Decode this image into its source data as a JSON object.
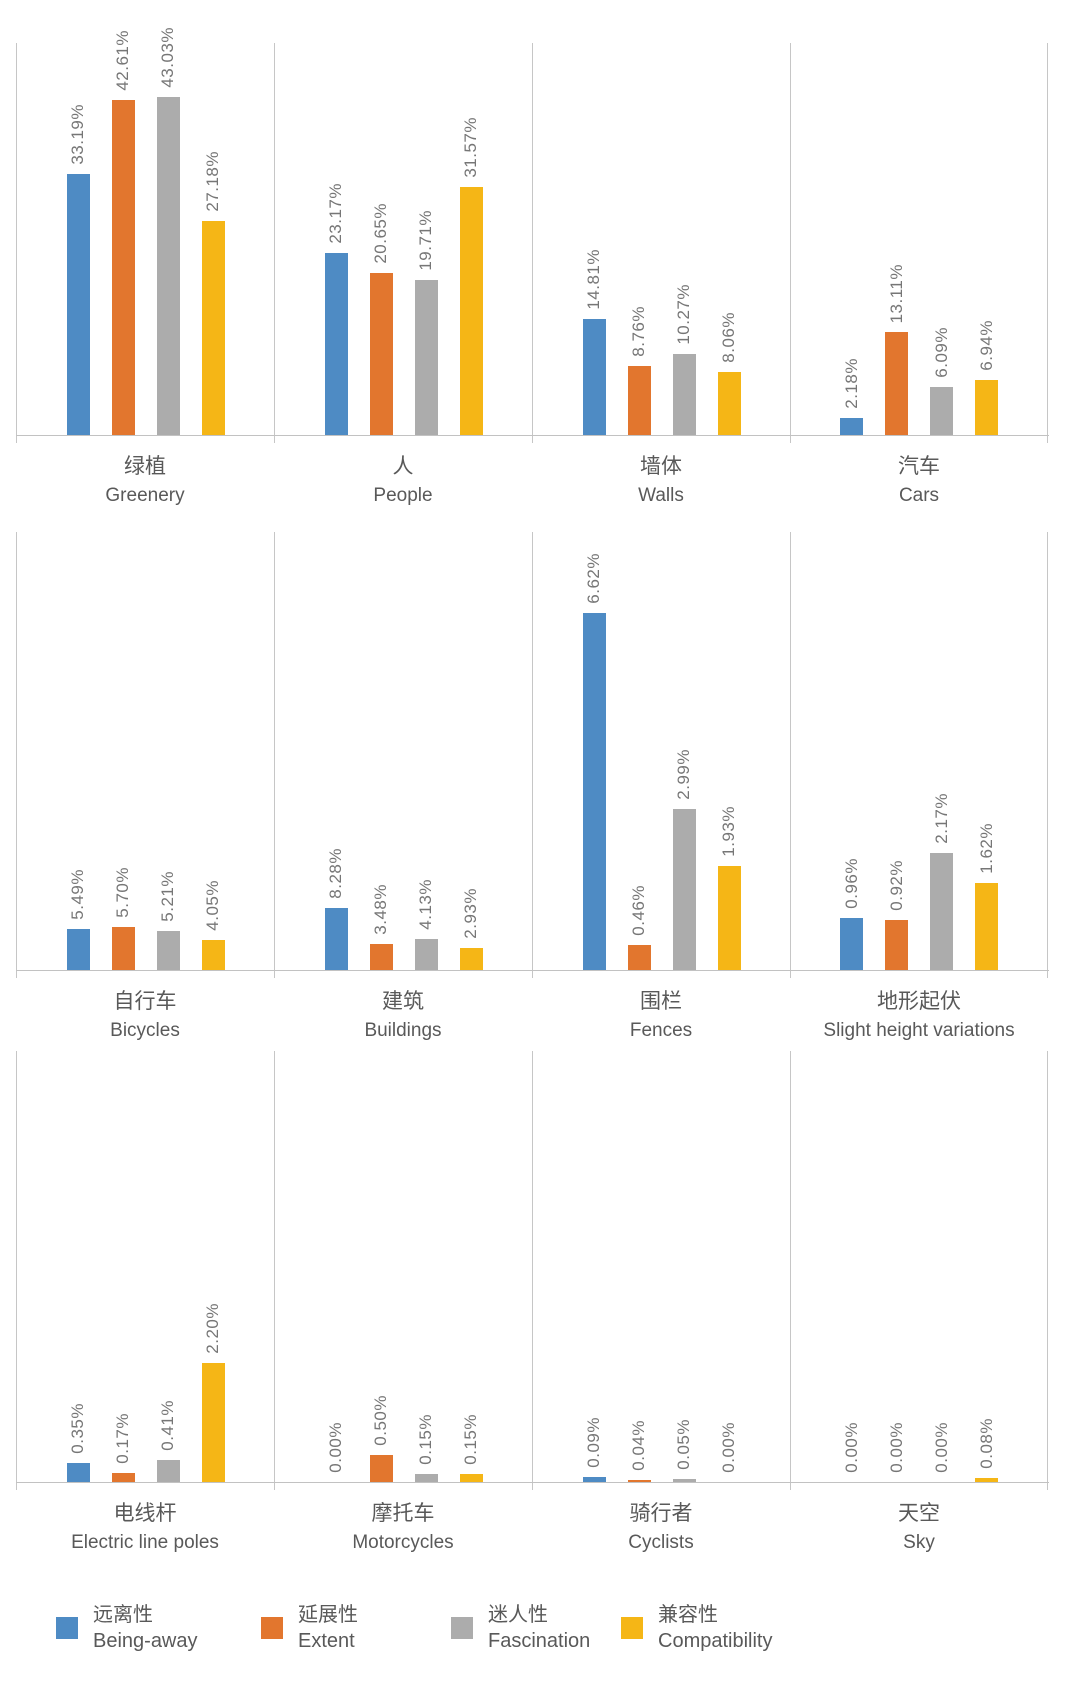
{
  "series": [
    {
      "id": "being-away",
      "zh": "远离性",
      "en": "Being-away",
      "color": "#4e8bc4"
    },
    {
      "id": "extent",
      "zh": "延展性",
      "en": "Extent",
      "color": "#e2762e"
    },
    {
      "id": "fascination",
      "zh": "迷人性",
      "en": "Fascination",
      "color": "#acacac"
    },
    {
      "id": "compatibility",
      "zh": "兼容性",
      "en": "Compatibility",
      "color": "#f5b616"
    }
  ],
  "chart_data": {
    "type": "bar",
    "unit": "%",
    "legend_position": "bottom",
    "grid": false,
    "series_names": [
      "远离性 Being-away",
      "延展性 Extent",
      "迷人性 Fascination",
      "兼容性 Compatibility"
    ],
    "layout_hint": {
      "rows": 3,
      "panels_per_row": 4,
      "value_labels_rotated": true,
      "per_panel_ylim": [
        [
          0,
          50
        ],
        [
          0,
          50
        ],
        [
          0,
          50
        ],
        [
          0,
          50
        ],
        [
          0,
          58
        ],
        [
          0,
          58
        ],
        [
          0,
          8
        ],
        [
          0,
          8
        ],
        [
          0,
          8
        ],
        [
          0,
          8
        ],
        [
          0,
          8
        ],
        [
          0,
          8
        ]
      ]
    },
    "groups": [
      {
        "zh": "绿植",
        "en": "Greenery",
        "values": [
          33.19,
          42.61,
          43.03,
          27.18
        ],
        "labels": [
          "33.19%",
          "42.61%",
          "43.03%",
          "27.18%"
        ]
      },
      {
        "zh": "人",
        "en": "People",
        "values": [
          23.17,
          20.65,
          19.71,
          31.57
        ],
        "labels": [
          "23.17%",
          "20.65%",
          "19.71%",
          "31.57%"
        ]
      },
      {
        "zh": "墙体",
        "en": "Walls",
        "values": [
          14.81,
          8.76,
          10.27,
          8.06
        ],
        "labels": [
          "14.81%",
          "8.76%",
          "10.27%",
          "8.06%"
        ]
      },
      {
        "zh": "汽车",
        "en": "Cars",
        "values": [
          2.18,
          13.11,
          6.09,
          6.94
        ],
        "labels": [
          "2.18%",
          "13.11%",
          "6.09%",
          "6.94%"
        ]
      },
      {
        "zh": "自行车",
        "en": "Bicycles",
        "values": [
          5.49,
          5.7,
          5.21,
          4.05
        ],
        "labels": [
          "5.49%",
          "5.70%",
          "5.21%",
          "4.05%"
        ]
      },
      {
        "zh": "建筑",
        "en": "Buildings",
        "values": [
          8.28,
          3.48,
          4.13,
          2.93
        ],
        "labels": [
          "8.28%",
          "3.48%",
          "4.13%",
          "2.93%"
        ]
      },
      {
        "zh": "围栏",
        "en": "Fences",
        "values": [
          6.62,
          0.46,
          2.99,
          1.93
        ],
        "labels": [
          "6.62%",
          "0.46%",
          "2.99%",
          "1.93%"
        ]
      },
      {
        "zh": "地形起伏",
        "en": "Slight height variations",
        "values": [
          0.96,
          0.92,
          2.17,
          1.62
        ],
        "labels": [
          "0.96%",
          "0.92%",
          "2.17%",
          "1.62%"
        ]
      },
      {
        "zh": "电线杆",
        "en": "Electric line poles",
        "values": [
          0.35,
          0.17,
          0.41,
          2.2
        ],
        "labels": [
          "0.35%",
          "0.17%",
          "0.41%",
          "2.20%"
        ]
      },
      {
        "zh": "摩托车",
        "en": "Motorcycles",
        "values": [
          0.0,
          0.5,
          0.15,
          0.15
        ],
        "labels": [
          "0.00%",
          "0.50%",
          "0.15%",
          "0.15%"
        ]
      },
      {
        "zh": "骑行者",
        "en": "Cyclists",
        "values": [
          0.09,
          0.04,
          0.05,
          0.0
        ],
        "labels": [
          "0.09%",
          "0.04%",
          "0.05%",
          "0.00%"
        ]
      },
      {
        "zh": "天空",
        "en": "Sky",
        "values": [
          0.0,
          0.0,
          0.0,
          0.08
        ],
        "labels": [
          "0.00%",
          "0.00%",
          "0.00%",
          "0.08%"
        ]
      }
    ]
  },
  "legend": {
    "items": [
      {
        "zh": "远离性",
        "en": "Being-away"
      },
      {
        "zh": "延展性",
        "en": "Extent"
      },
      {
        "zh": "迷人性",
        "en": "Fascination"
      },
      {
        "zh": "兼容性",
        "en": "Compatibility"
      }
    ]
  }
}
